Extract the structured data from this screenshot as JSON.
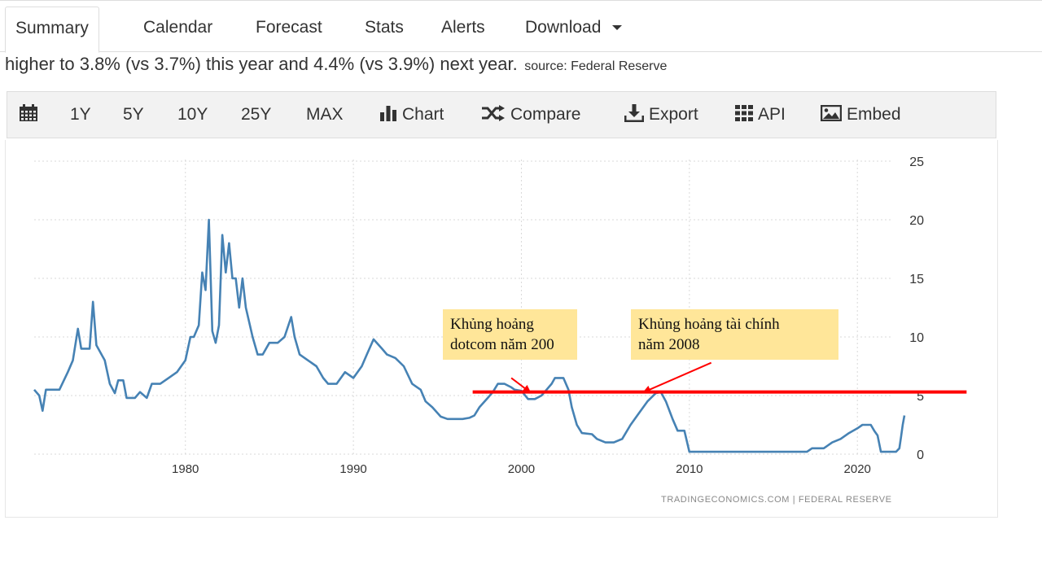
{
  "tabs": [
    {
      "label": "Summary",
      "active": true
    },
    {
      "label": "Calendar"
    },
    {
      "label": "Forecast"
    },
    {
      "label": "Stats"
    },
    {
      "label": "Alerts"
    },
    {
      "label": "Download"
    }
  ],
  "summary": {
    "text": "higher to 3.8% (vs 3.7%) this year and 4.4% (vs 3.9%) next year.",
    "source": "source: Federal Reserve"
  },
  "toolbar": {
    "calendar_icon": "calendar-icon",
    "range_1y": "1Y",
    "range_5y": "5Y",
    "range_10y": "10Y",
    "range_25y": "25Y",
    "range_max": "MAX",
    "chart": "Chart",
    "compare": "Compare",
    "export": "Export",
    "api": "API",
    "embed": "Embed"
  },
  "credit": "TRADINGECONOMICS.COM  |  FEDERAL RESERVE",
  "annotations": [
    {
      "line1": "Khủng hoảng",
      "line2": "dotcom năm 200"
    },
    {
      "line1": "Khủng hoảng tài chính",
      "line2": "năm 2008"
    }
  ],
  "colors": {
    "line": "#4682b4",
    "highlight": "#ff0000",
    "annotation": "#ffe699",
    "grid": "#d9d9d9"
  },
  "chart_data": {
    "type": "line",
    "title": "",
    "xlabel": "",
    "ylabel": "",
    "xlim": [
      1971,
      2022.8
    ],
    "ylim": [
      0,
      25
    ],
    "x_ticks": [
      1980,
      1990,
      2000,
      2010,
      2020
    ],
    "y_ticks": [
      0,
      5,
      10,
      15,
      20,
      25
    ],
    "y_axis_side": "right",
    "grid": "dotted",
    "series": [
      {
        "points": [
          [
            1971.0,
            5.5
          ],
          [
            1971.3,
            5.0
          ],
          [
            1971.5,
            3.7
          ],
          [
            1971.7,
            5.5
          ],
          [
            1972.5,
            5.5
          ],
          [
            1973.0,
            7.0
          ],
          [
            1973.3,
            8.0
          ],
          [
            1973.6,
            10.7
          ],
          [
            1973.8,
            9.0
          ],
          [
            1974.3,
            9.0
          ],
          [
            1974.5,
            13.0
          ],
          [
            1974.7,
            9.3
          ],
          [
            1975.2,
            8.0
          ],
          [
            1975.5,
            6.0
          ],
          [
            1975.8,
            5.2
          ],
          [
            1976.0,
            6.3
          ],
          [
            1976.3,
            6.3
          ],
          [
            1976.5,
            4.8
          ],
          [
            1977.0,
            4.8
          ],
          [
            1977.3,
            5.3
          ],
          [
            1977.7,
            4.8
          ],
          [
            1978.0,
            6.0
          ],
          [
            1978.5,
            6.0
          ],
          [
            1979.0,
            6.5
          ],
          [
            1979.5,
            7.0
          ],
          [
            1980.0,
            8.0
          ],
          [
            1980.3,
            10.0
          ],
          [
            1980.5,
            10.0
          ],
          [
            1980.8,
            11.0
          ],
          [
            1981.0,
            15.5
          ],
          [
            1981.2,
            14.0
          ],
          [
            1981.4,
            20.0
          ],
          [
            1981.6,
            10.5
          ],
          [
            1981.8,
            9.5
          ],
          [
            1982.0,
            11.0
          ],
          [
            1982.2,
            18.7
          ],
          [
            1982.4,
            15.5
          ],
          [
            1982.6,
            18.0
          ],
          [
            1982.8,
            15.0
          ],
          [
            1983.0,
            15.0
          ],
          [
            1983.2,
            12.5
          ],
          [
            1983.4,
            15.0
          ],
          [
            1983.6,
            12.5
          ],
          [
            1984.0,
            10.0
          ],
          [
            1984.3,
            8.5
          ],
          [
            1984.6,
            8.5
          ],
          [
            1985.0,
            9.5
          ],
          [
            1985.5,
            9.5
          ],
          [
            1985.9,
            10.0
          ],
          [
            1986.3,
            11.7
          ],
          [
            1986.5,
            10.0
          ],
          [
            1986.8,
            8.5
          ],
          [
            1987.3,
            8.0
          ],
          [
            1987.8,
            7.5
          ],
          [
            1988.2,
            6.5
          ],
          [
            1988.5,
            6.0
          ],
          [
            1989.0,
            6.0
          ],
          [
            1989.5,
            7.0
          ],
          [
            1990.0,
            6.5
          ],
          [
            1990.5,
            7.5
          ],
          [
            1990.8,
            8.5
          ],
          [
            1991.2,
            9.8
          ],
          [
            1991.7,
            9.0
          ],
          [
            1992.0,
            8.5
          ],
          [
            1992.5,
            8.2
          ],
          [
            1993.0,
            7.5
          ],
          [
            1993.5,
            6.0
          ],
          [
            1994.0,
            5.5
          ],
          [
            1994.3,
            4.5
          ],
          [
            1994.7,
            4.0
          ],
          [
            1995.2,
            3.2
          ],
          [
            1995.6,
            3.0
          ],
          [
            1996.5,
            3.0
          ],
          [
            1996.9,
            3.1
          ],
          [
            1997.2,
            3.3
          ],
          [
            1997.5,
            4.0
          ],
          [
            1998.0,
            4.8
          ],
          [
            1998.3,
            5.3
          ],
          [
            1998.6,
            6.0
          ],
          [
            1999.0,
            6.0
          ],
          [
            1999.4,
            5.7
          ],
          [
            1999.6,
            5.5
          ],
          [
            2000.0,
            5.4
          ],
          [
            2000.4,
            4.7
          ],
          [
            2000.8,
            4.7
          ],
          [
            2001.2,
            5.0
          ],
          [
            2001.5,
            5.5
          ],
          [
            2001.8,
            6.0
          ],
          [
            2002.0,
            6.5
          ],
          [
            2002.5,
            6.5
          ],
          [
            2002.8,
            5.5
          ],
          [
            2003.0,
            4.0
          ],
          [
            2003.3,
            2.5
          ],
          [
            2003.6,
            1.8
          ],
          [
            2004.2,
            1.7
          ],
          [
            2004.5,
            1.3
          ],
          [
            2005.0,
            1.0
          ],
          [
            2005.5,
            1.0
          ],
          [
            2006.0,
            1.3
          ],
          [
            2006.5,
            2.5
          ],
          [
            2007.0,
            3.5
          ],
          [
            2007.5,
            4.5
          ],
          [
            2008.0,
            5.2
          ],
          [
            2008.3,
            5.3
          ],
          [
            2008.6,
            4.5
          ],
          [
            2009.0,
            3.0
          ],
          [
            2009.3,
            2.0
          ],
          [
            2009.7,
            2.0
          ],
          [
            2010.0,
            0.2
          ],
          [
            2010.5,
            0.2
          ],
          [
            2017.0,
            0.2
          ],
          [
            2017.3,
            0.5
          ],
          [
            2018.0,
            0.5
          ],
          [
            2018.5,
            1.0
          ],
          [
            2019.0,
            1.3
          ],
          [
            2019.5,
            1.8
          ],
          [
            2020.0,
            2.2
          ],
          [
            2020.3,
            2.5
          ],
          [
            2020.8,
            2.5
          ],
          [
            2021.0,
            2.0
          ],
          [
            2021.2,
            1.6
          ],
          [
            2021.4,
            0.2
          ],
          [
            2022.3,
            0.2
          ],
          [
            2022.5,
            0.5
          ],
          [
            2022.6,
            1.5
          ],
          [
            2022.7,
            2.5
          ],
          [
            2022.8,
            3.3
          ]
        ]
      }
    ],
    "highlight": {
      "type": "horizontal-line",
      "y": 5.3,
      "x_from": 1997.1,
      "x_to": 2026.5
    },
    "arrows": [
      {
        "from": [
          1999.4,
          6.5
        ],
        "to": [
          2000.5,
          5.3
        ]
      },
      {
        "from": [
          2011.3,
          7.8
        ],
        "to": [
          2007.3,
          5.3
        ]
      }
    ]
  }
}
